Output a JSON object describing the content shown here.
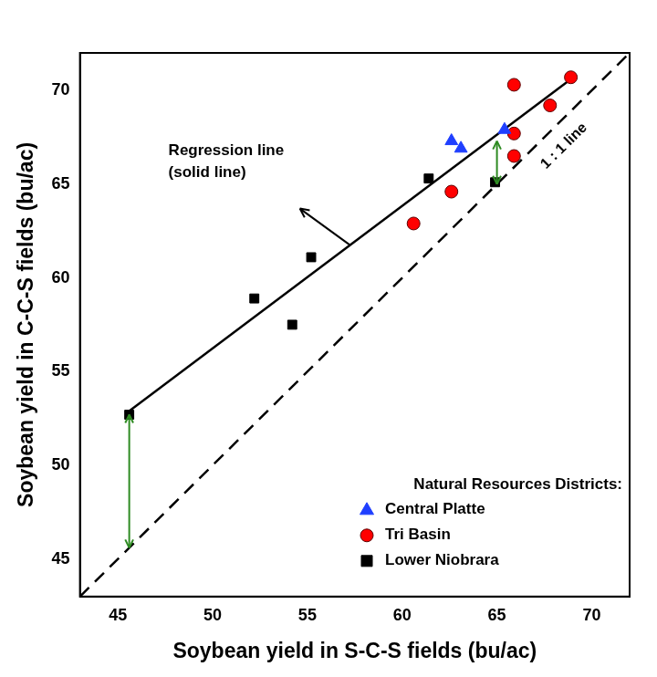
{
  "chart_data": {
    "type": "scatter",
    "x_label": "Soybean yield in S-C-S fields (bu/ac)",
    "y_label": "Soybean yield in C-C-S fields (bu/ac)",
    "xlim": [
      43,
      72
    ],
    "ylim": [
      43,
      72
    ],
    "xticks": [
      45,
      50,
      55,
      60,
      65,
      70
    ],
    "yticks": [
      45,
      50,
      55,
      60,
      65,
      70
    ],
    "grid": false,
    "legend": "lower right",
    "legend_title": "Natural Resources Districts:",
    "series": [
      {
        "name": "Central Platte",
        "color": "#1f3fff",
        "marker": "triangle",
        "x": [
          62.6,
          63.1,
          65.4
        ],
        "values": [
          67.3,
          66.9,
          67.9
        ]
      },
      {
        "name": "Tri Basin",
        "color": "#ff0000",
        "marker": "circle",
        "x": [
          60.6,
          62.6,
          65.9,
          65.9,
          65.9,
          67.8,
          68.9
        ],
        "values": [
          62.9,
          64.6,
          70.3,
          67.7,
          66.5,
          69.2,
          70.7
        ]
      },
      {
        "name": "Lower Niobrara",
        "color": "#000000",
        "marker": "square",
        "x": [
          45.6,
          52.2,
          54.2,
          55.2,
          61.4,
          64.9
        ],
        "values": [
          52.7,
          58.9,
          57.5,
          61.1,
          65.3,
          65.1
        ]
      }
    ],
    "lines": [
      {
        "label": [
          "Regression line",
          "(solid line)"
        ],
        "line_style": "solid",
        "color": "#000000",
        "x": [
          45.6,
          68.9
        ],
        "values": [
          52.9,
          70.6
        ]
      },
      {
        "label": [
          "1 : 1 line"
        ],
        "line_style": "dashed",
        "color": "#000000",
        "x": [
          43,
          72
        ],
        "values": [
          43,
          72
        ]
      }
    ],
    "arrows": [
      {
        "x": 45.6,
        "values": [
          45.6,
          52.7
        ],
        "color": "#2e8b22"
      },
      {
        "x": 65.0,
        "values": [
          65.0,
          67.3
        ],
        "color": "#2e8b22"
      }
    ]
  }
}
